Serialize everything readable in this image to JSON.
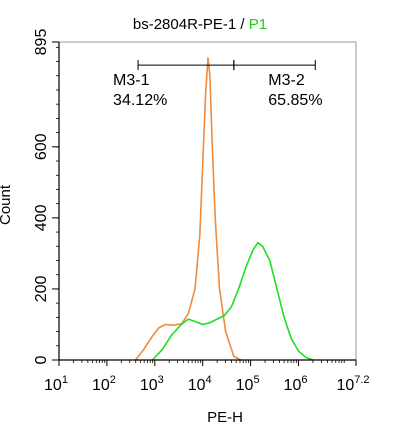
{
  "chart_data": {
    "type": "histogram",
    "title": "bs-2804R-PE-1 /",
    "title_highlight": "P1",
    "xlabel": "PE-H",
    "ylabel": "Count",
    "x_scale": "log10",
    "xlim_exp": [
      1,
      7.2
    ],
    "ylim": [
      0,
      895
    ],
    "x_ticks": [
      {
        "base": "10",
        "exp": "1",
        "value": 10
      },
      {
        "base": "10",
        "exp": "2",
        "value": 100
      },
      {
        "base": "10",
        "exp": "3",
        "value": 1000
      },
      {
        "base": "10",
        "exp": "4",
        "value": 10000
      },
      {
        "base": "10",
        "exp": "5",
        "value": 100000
      },
      {
        "base": "10",
        "exp": "6",
        "value": 1000000
      },
      {
        "base": "10",
        "exp": "7.2",
        "value": 15848932
      }
    ],
    "y_ticks": [
      "0",
      "200",
      "400",
      "600",
      "895"
    ],
    "y_tick_values": [
      0,
      200,
      400,
      600,
      895
    ],
    "colors": {
      "sample": "#1ee01e",
      "control": "#f08a3c",
      "highlight": "#22cc22",
      "axis": "#000000"
    },
    "series": [
      {
        "key": "control",
        "color": "#f08a3c",
        "points": [
          {
            "x": 398,
            "y": 0
          },
          {
            "x": 589,
            "y": 30
          },
          {
            "x": 871,
            "y": 65
          },
          {
            "x": 1202,
            "y": 90
          },
          {
            "x": 1660,
            "y": 100
          },
          {
            "x": 2455,
            "y": 98
          },
          {
            "x": 3631,
            "y": 102
          },
          {
            "x": 5012,
            "y": 130
          },
          {
            "x": 6918,
            "y": 200
          },
          {
            "x": 8710,
            "y": 350
          },
          {
            "x": 10000,
            "y": 550
          },
          {
            "x": 11482,
            "y": 750
          },
          {
            "x": 12882,
            "y": 850
          },
          {
            "x": 14125,
            "y": 800
          },
          {
            "x": 15849,
            "y": 600
          },
          {
            "x": 18197,
            "y": 400
          },
          {
            "x": 22387,
            "y": 200
          },
          {
            "x": 30200,
            "y": 80
          },
          {
            "x": 44668,
            "y": 10
          },
          {
            "x": 63096,
            "y": 0
          }
        ]
      },
      {
        "key": "sample",
        "color": "#1ee01e",
        "points": [
          {
            "x": 891,
            "y": 0
          },
          {
            "x": 1445,
            "y": 30
          },
          {
            "x": 2239,
            "y": 70
          },
          {
            "x": 3548,
            "y": 100
          },
          {
            "x": 5012,
            "y": 115
          },
          {
            "x": 7079,
            "y": 108
          },
          {
            "x": 10000,
            "y": 100
          },
          {
            "x": 14125,
            "y": 105
          },
          {
            "x": 19953,
            "y": 115
          },
          {
            "x": 28184,
            "y": 125
          },
          {
            "x": 39811,
            "y": 150
          },
          {
            "x": 56234,
            "y": 200
          },
          {
            "x": 79433,
            "y": 260
          },
          {
            "x": 112202,
            "y": 310
          },
          {
            "x": 141254,
            "y": 330
          },
          {
            "x": 177828,
            "y": 320
          },
          {
            "x": 251189,
            "y": 280
          },
          {
            "x": 354813,
            "y": 200
          },
          {
            "x": 501187,
            "y": 120
          },
          {
            "x": 707946,
            "y": 60
          },
          {
            "x": 1000000,
            "y": 25
          },
          {
            "x": 1412538,
            "y": 8
          },
          {
            "x": 1995262,
            "y": 0
          }
        ]
      }
    ],
    "gates": [
      {
        "name": "M3-1",
        "percent": "34.12%",
        "x_from": 447,
        "x_to": 44668
      },
      {
        "name": "M3-2",
        "percent": "65.85%",
        "x_from": 44668,
        "x_to": 2238721
      }
    ],
    "gate_y": 830
  }
}
